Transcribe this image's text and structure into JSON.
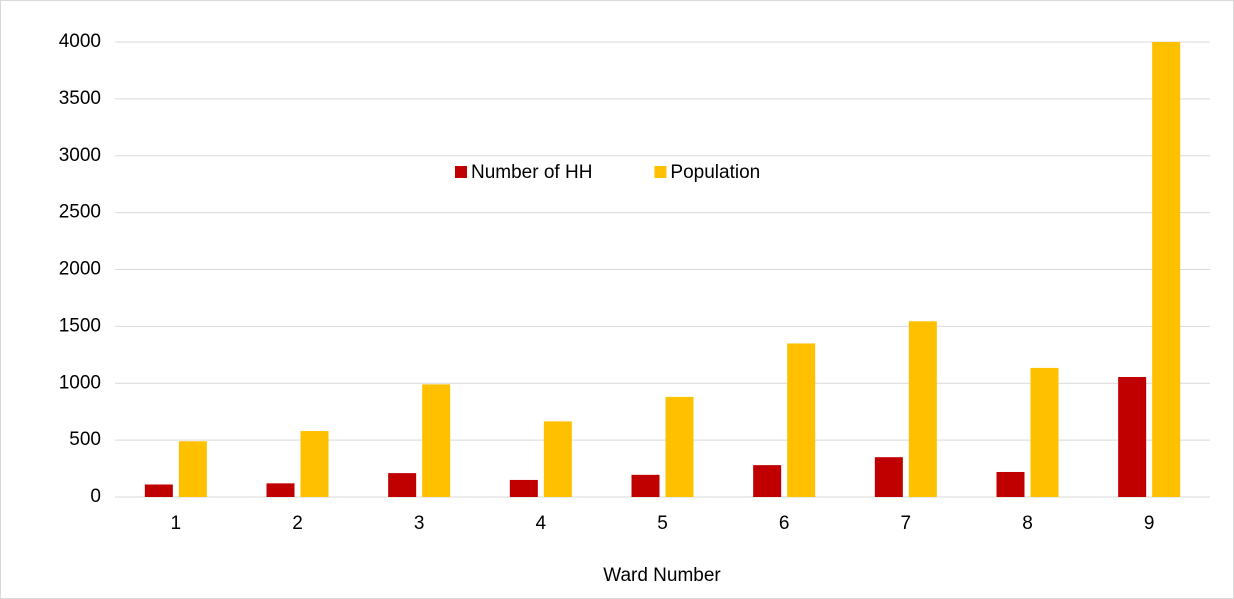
{
  "chart_data": {
    "type": "bar",
    "x_label": "Ward Number",
    "categories": [
      "1",
      "2",
      "3",
      "4",
      "5",
      "6",
      "7",
      "8",
      "9"
    ],
    "series": [
      {
        "name": "Number of HH",
        "color": "#c00000",
        "values": [
          110,
          120,
          210,
          150,
          195,
          280,
          350,
          220,
          1055
        ]
      },
      {
        "name": "Population",
        "color": "#ffc000",
        "values": [
          490,
          580,
          990,
          665,
          880,
          1350,
          1545,
          1135,
          4000
        ]
      }
    ],
    "ylim": [
      0,
      4000
    ],
    "yticks": [
      0,
      500,
      1000,
      1500,
      2000,
      2500,
      3000,
      3500,
      4000
    ],
    "grid": true
  }
}
